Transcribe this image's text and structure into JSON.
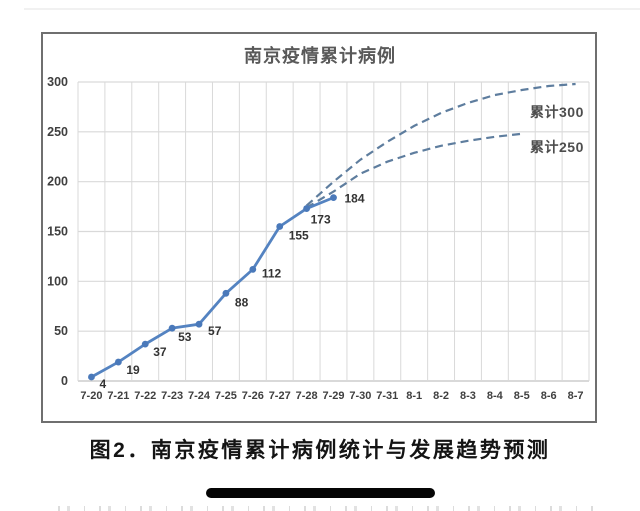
{
  "page": {
    "caption": "图2．南京疫情累计病例统计与发展趋势预测"
  },
  "chart_data": {
    "type": "line",
    "title": "南京疫情累计病例",
    "categories": [
      "7-20",
      "7-21",
      "7-22",
      "7-23",
      "7-24",
      "7-25",
      "7-26",
      "7-27",
      "7-28",
      "7-29",
      "7-30",
      "7-31",
      "8-1",
      "8-2",
      "8-3",
      "8-4",
      "8-5",
      "8-6",
      "8-7"
    ],
    "ylim": [
      0,
      300
    ],
    "ytick_interval": 50,
    "yticks": [
      0,
      50,
      100,
      150,
      200,
      250,
      300
    ],
    "grid": true,
    "legend_position": "none",
    "series": [
      {
        "name": "actual-cumulative-cases",
        "style": "solid-with-markers",
        "start_index": 0,
        "values": [
          4,
          19,
          37,
          53,
          57,
          88,
          112,
          155,
          173,
          184
        ],
        "point_labels": [
          "4",
          "19",
          "37",
          "53",
          "57",
          "88",
          "112",
          "155",
          "173",
          "184"
        ]
      },
      {
        "name": "projection-high",
        "style": "dashed",
        "start_index": 8,
        "values": [
          176,
          200,
          222,
          240,
          256,
          269,
          279,
          287,
          292,
          296,
          298
        ],
        "annotation": "累计300"
      },
      {
        "name": "projection-low",
        "style": "dashed",
        "start_index": 8,
        "values": [
          174,
          190,
          208,
          220,
          229,
          236,
          241,
          245,
          248
        ],
        "annotation": "累计250"
      }
    ]
  },
  "colors": {
    "line": "#5483c1",
    "marker": "#4a79ba",
    "dashed": "#5e7d9e",
    "grid": "#d9d9d9",
    "axis_line": "#c2c2c2",
    "frame_border": "#6f6f6f",
    "tick_text": "#3f3f3f",
    "point_label_text": "#333333",
    "title_text": "#595959",
    "annotation_text": "#4d4d4d",
    "caption_text": "#141414"
  }
}
